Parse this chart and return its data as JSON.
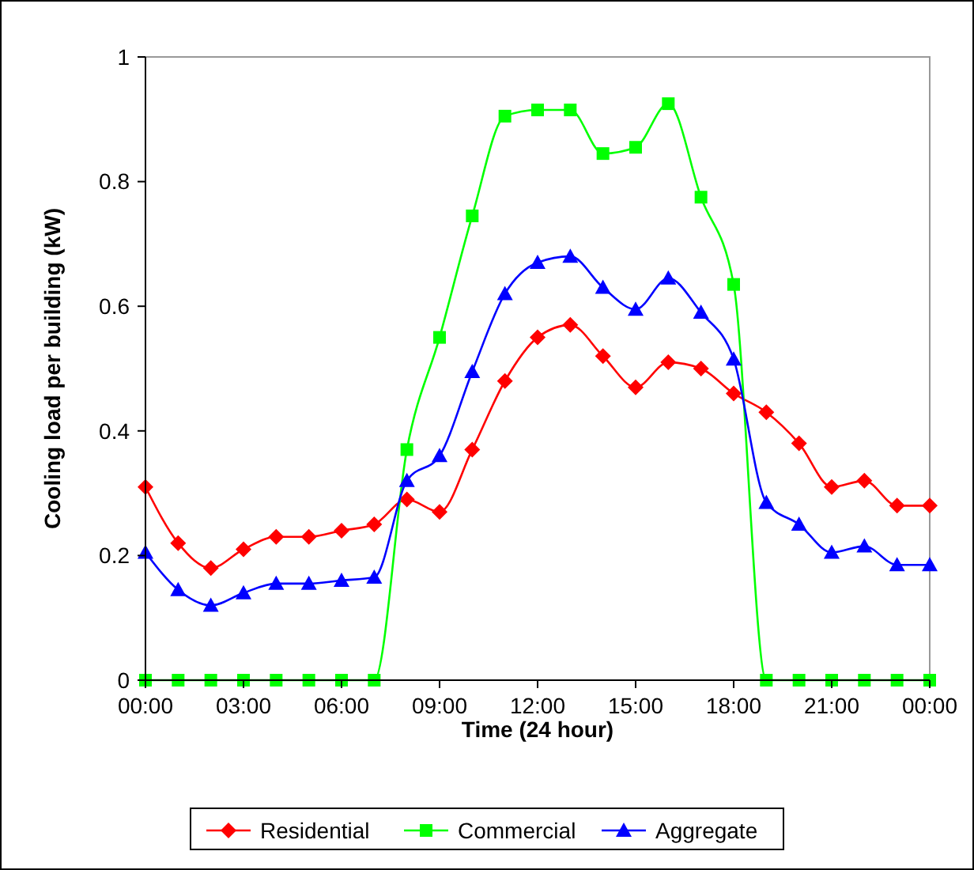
{
  "chart_data": {
    "type": "line",
    "xlabel": "Time (24 hour)",
    "ylabel": "Cooling load per building (kW)",
    "x": [
      0,
      1,
      2,
      3,
      4,
      5,
      6,
      7,
      8,
      9,
      10,
      11,
      12,
      13,
      14,
      15,
      16,
      17,
      18,
      19,
      20,
      21,
      22,
      23,
      24
    ],
    "xlim": [
      0,
      24
    ],
    "xticks": [
      {
        "value": 0,
        "label": "00:00"
      },
      {
        "value": 3,
        "label": "03:00"
      },
      {
        "value": 6,
        "label": "06:00"
      },
      {
        "value": 9,
        "label": "09:00"
      },
      {
        "value": 12,
        "label": "12:00"
      },
      {
        "value": 15,
        "label": "15:00"
      },
      {
        "value": 18,
        "label": "18:00"
      },
      {
        "value": 21,
        "label": "21:00"
      },
      {
        "value": 24,
        "label": "00:00"
      }
    ],
    "ylim": [
      0,
      1
    ],
    "yticks": [
      0,
      0.2,
      0.4,
      0.6,
      0.8,
      1
    ],
    "grid": false,
    "legend": "bottom",
    "line_style": "solid",
    "series": [
      {
        "name": "Residential",
        "color": "#ff0000",
        "marker": "diamond",
        "values": [
          0.31,
          0.22,
          0.18,
          0.21,
          0.23,
          0.23,
          0.24,
          0.25,
          0.29,
          0.27,
          0.37,
          0.48,
          0.55,
          0.57,
          0.52,
          0.47,
          0.51,
          0.5,
          0.46,
          0.43,
          0.38,
          0.31,
          0.32,
          0.28,
          0.28
        ]
      },
      {
        "name": "Commercial",
        "color": "#00ff00",
        "marker": "square",
        "values": [
          0,
          0,
          0,
          0,
          0,
          0,
          0,
          0,
          0.37,
          0.55,
          0.745,
          0.905,
          0.915,
          0.915,
          0.845,
          0.855,
          0.925,
          0.775,
          0.635,
          0,
          0,
          0,
          0,
          0,
          0
        ]
      },
      {
        "name": "Aggregate",
        "color": "#0000ff",
        "marker": "triangle",
        "values": [
          0.205,
          0.145,
          0.12,
          0.14,
          0.155,
          0.155,
          0.16,
          0.165,
          0.32,
          0.36,
          0.495,
          0.62,
          0.67,
          0.68,
          0.63,
          0.595,
          0.645,
          0.59,
          0.515,
          0.285,
          0.25,
          0.205,
          0.215,
          0.185,
          0.185
        ]
      }
    ]
  }
}
